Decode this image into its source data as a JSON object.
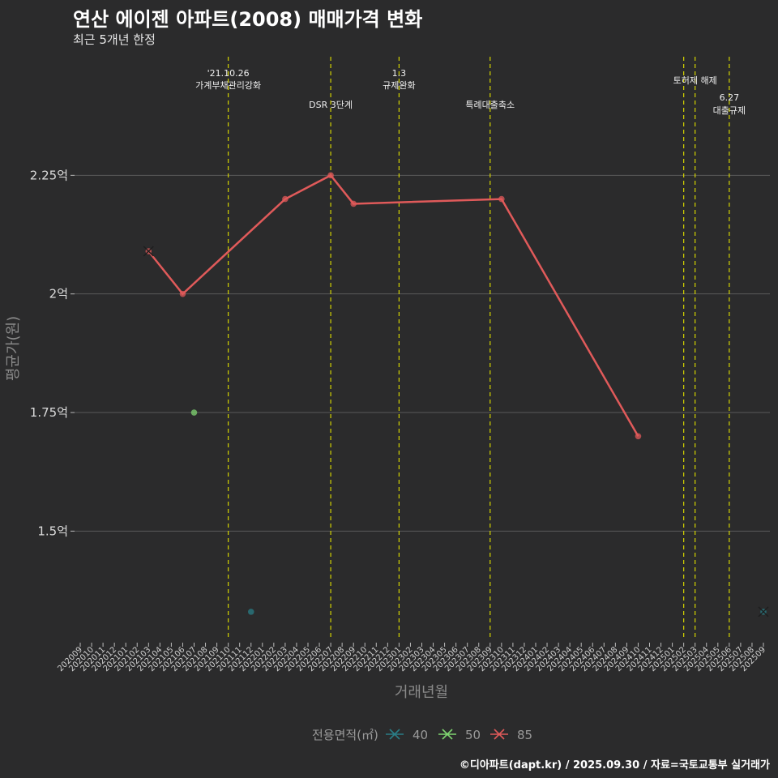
{
  "header": {
    "title": "연산 에이젠 아파트(2008) 매매가격 변화",
    "subtitle": "최근 5개년 한정",
    "caption": "©디아파트(dapt.kr) / 2025.09.30 / 자료=국토교통부 실거래가"
  },
  "colors": {
    "s40": "#2a7d86",
    "s50": "#7fd470",
    "s85": "#e05a5a",
    "vline": "#d4d400",
    "grid": "#5a5a5a"
  },
  "chart_data": {
    "type": "line",
    "title": "연산 에이젠 아파트(2008) 매매가격 변화",
    "subtitle": "최근 5개년 한정",
    "xlabel": "거래년월",
    "ylabel": "평균가(원)",
    "ylim": [
      1.27,
      2.5
    ],
    "yticks": [
      {
        "value": 1.5,
        "label": "1.5억"
      },
      {
        "value": 1.75,
        "label": "1.75억"
      },
      {
        "value": 2.0,
        "label": "2억"
      },
      {
        "value": 2.25,
        "label": "2.25억"
      }
    ],
    "categories": [
      "202009",
      "202010",
      "202011",
      "202012",
      "202101",
      "202102",
      "202103",
      "202104",
      "202105",
      "202106",
      "202107",
      "202108",
      "202109",
      "202110",
      "202111",
      "202112",
      "202201",
      "202202",
      "202203",
      "202204",
      "202205",
      "202206",
      "202207",
      "202208",
      "202209",
      "202210",
      "202211",
      "202212",
      "202301",
      "202302",
      "202303",
      "202304",
      "202305",
      "202306",
      "202307",
      "202308",
      "202309",
      "202310",
      "202311",
      "202312",
      "202401",
      "202402",
      "202403",
      "202404",
      "202405",
      "202406",
      "202407",
      "202408",
      "202409",
      "202410",
      "202411",
      "202412",
      "202501",
      "202502",
      "202503",
      "202504",
      "202505",
      "202506",
      "202507",
      "202508",
      "202509"
    ],
    "legend_title": "전용면적(㎡)",
    "series": [
      {
        "name": "40",
        "color_key": "s40",
        "line": false,
        "points": [
          {
            "x": "202112",
            "y": 1.33
          },
          {
            "x": "202509",
            "y": 1.33
          }
        ],
        "cross": [
          "202509"
        ]
      },
      {
        "name": "50",
        "color_key": "s50",
        "line": false,
        "points": [
          {
            "x": "202107",
            "y": 1.75
          }
        ],
        "cross": []
      },
      {
        "name": "85",
        "color_key": "s85",
        "line": true,
        "points": [
          {
            "x": "202103",
            "y": 2.09
          },
          {
            "x": "202106",
            "y": 2.0
          },
          {
            "x": "202203",
            "y": 2.2
          },
          {
            "x": "202207",
            "y": 2.25
          },
          {
            "x": "202209",
            "y": 2.19
          },
          {
            "x": "202310",
            "y": 2.2
          },
          {
            "x": "202410",
            "y": 1.7
          }
        ],
        "cross": [
          "202103"
        ]
      }
    ],
    "events": [
      {
        "x": "202110",
        "lines": [
          "'21.10.26",
          "가계부채관리강화"
        ],
        "level": 0
      },
      {
        "x": "202207",
        "lines": [
          "DSR 3단계"
        ],
        "level": 2
      },
      {
        "x": "202301",
        "lines": [
          "1.3",
          "규제완화"
        ],
        "level": 0
      },
      {
        "x": "202309",
        "lines": [
          "특례대출축소"
        ],
        "level": 2
      },
      {
        "x": "202502",
        "lines": [],
        "level": 0
      },
      {
        "x": "202503",
        "lines": [
          "토허제 해제"
        ],
        "level": 1
      },
      {
        "x": "202506",
        "lines": [
          "6.27",
          "대출규제"
        ],
        "level": 3
      }
    ]
  }
}
